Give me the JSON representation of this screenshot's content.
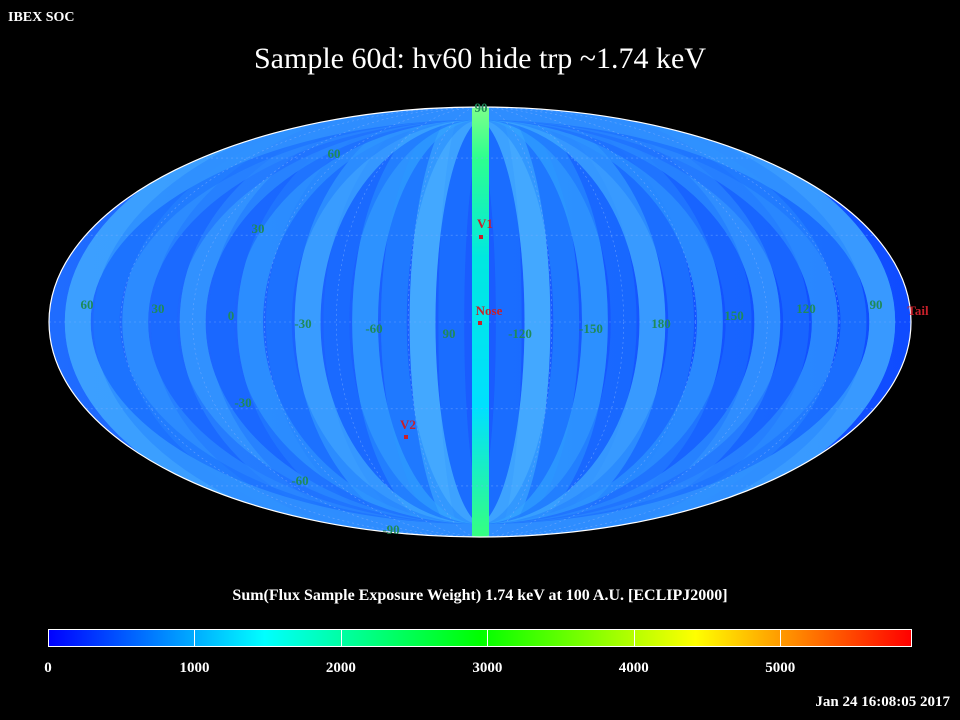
{
  "header": {
    "label": "IBEX SOC"
  },
  "title": "Sample 60d: hv60 hide trp ~1.74 keV",
  "map": {
    "projection": "Mollweide",
    "markers": [
      {
        "name": "V1",
        "color": "#c8202a"
      },
      {
        "name": "Nose",
        "color": "#c8202a"
      },
      {
        "name": "V2",
        "color": "#c8202a"
      },
      {
        "name": "Tail",
        "color": "#c8202a"
      }
    ],
    "lat_labels": [
      "60",
      "30",
      "0",
      "-30",
      "-60",
      "90",
      "-90"
    ],
    "lon_labels": [
      "60",
      "30",
      "0",
      "-30",
      "-60",
      "90",
      "-120",
      "-150",
      "180",
      "150",
      "120",
      "90"
    ],
    "label_color": "#1f8a5a"
  },
  "colorbar": {
    "title": "Sum(Flux Sample Exposure Weight)  1.74 keV at 100 A.U. [ECLIPJ2000]",
    "ticks": [
      "0",
      "1000",
      "2000",
      "3000",
      "4000",
      "5000"
    ],
    "range": [
      0,
      5900
    ],
    "colors": [
      "#0000ff",
      "#00ffff",
      "#00ff00",
      "#ffff00",
      "#ff0000"
    ]
  },
  "timestamp": "Jan 24 16:08:05 2017"
}
